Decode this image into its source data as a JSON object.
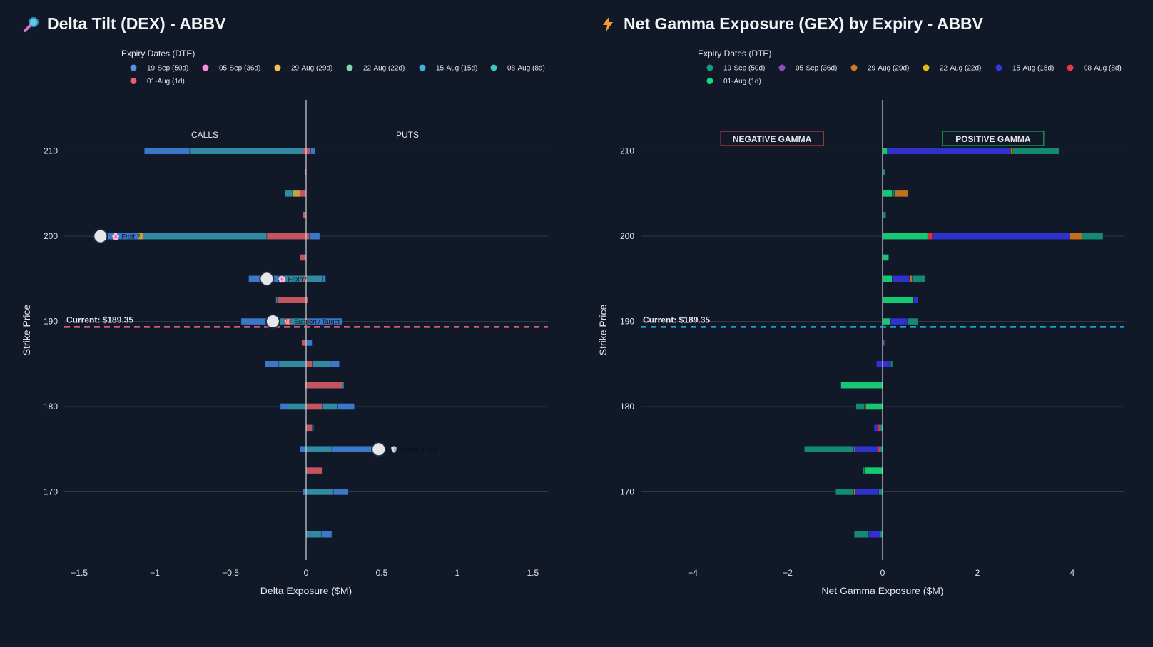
{
  "chart_data": [
    {
      "type": "bar",
      "orientation": "horizontal",
      "stacked": true,
      "title": "Delta Tilt (DEX) - ABBV",
      "title_icon": "magnifier-icon",
      "xlabel": "Delta Exposure ($M)",
      "ylabel": "Strike Price",
      "xlim": [
        -1.6,
        1.6
      ],
      "ylim": [
        162,
        216
      ],
      "xticks": [
        -1.5,
        -1,
        -0.5,
        0,
        0.5,
        1,
        1.5
      ],
      "xtick_labels": [
        "−1.5",
        "−1",
        "−0.5",
        "0",
        "0.5",
        "1",
        "1.5"
      ],
      "yticks": [
        170,
        180,
        190,
        200,
        210
      ],
      "legend_title": "Expiry Dates (DTE)",
      "series": [
        {
          "name": "19-Sep (50d)",
          "color": "#4f94e6"
        },
        {
          "name": "05-Sep (36d)",
          "color": "#f98fd8"
        },
        {
          "name": "29-Aug (29d)",
          "color": "#f5c44f"
        },
        {
          "name": "22-Aug (22d)",
          "color": "#7fd3b4"
        },
        {
          "name": "15-Aug (15d)",
          "color": "#3fb6d6"
        },
        {
          "name": "08-Aug (8d)",
          "color": "#3ec9be"
        },
        {
          "name": "01-Aug (1d)",
          "color": "#f15b6c"
        }
      ],
      "bar_colors": {
        "19-Sep": "#3c78c8",
        "05-Sep": "#d27fbf",
        "29-Aug": "#c9a040",
        "22-Aug": "#6fb59c",
        "15-Aug": "#2f8aa2",
        "08-Aug": "#2f9a92",
        "01-Aug": "#c2555f"
      },
      "bars": [
        {
          "strike": 210,
          "segments": [
            {
              "series": "01-Aug",
              "value": -0.02
            },
            {
              "series": "15-Aug",
              "value": -0.75
            },
            {
              "series": "19-Sep",
              "value": -0.3
            },
            {
              "series": "01-Aug",
              "value": 0.03
            },
            {
              "series": "19-Sep",
              "value": 0.03
            }
          ]
        },
        {
          "strike": 207.5,
          "segments": [
            {
              "series": "01-Aug",
              "value": -0.01
            }
          ]
        },
        {
          "strike": 205,
          "segments": [
            {
              "series": "01-Aug",
              "value": -0.04
            },
            {
              "series": "29-Aug",
              "value": -0.05
            },
            {
              "series": "15-Aug",
              "value": -0.05
            }
          ]
        },
        {
          "strike": 202.5,
          "segments": [
            {
              "series": "01-Aug",
              "value": -0.02
            }
          ]
        },
        {
          "strike": 200,
          "segments": [
            {
              "series": "01-Aug",
              "value": -0.26
            },
            {
              "series": "15-Aug",
              "value": -0.82
            },
            {
              "series": "29-Aug",
              "value": -0.03
            },
            {
              "series": "19-Sep",
              "value": -0.25
            },
            {
              "series": "01-Aug",
              "value": 0.02
            },
            {
              "series": "19-Sep",
              "value": 0.07
            }
          ]
        },
        {
          "strike": 197.5,
          "segments": [
            {
              "series": "01-Aug",
              "value": -0.04
            }
          ]
        },
        {
          "strike": 195,
          "segments": [
            {
              "series": "01-Aug",
              "value": -0.02
            },
            {
              "series": "15-Aug",
              "value": -0.16
            },
            {
              "series": "19-Sep",
              "value": -0.2
            },
            {
              "series": "15-Aug",
              "value": 0.11
            },
            {
              "series": "19-Sep",
              "value": 0.02
            }
          ]
        },
        {
          "strike": 192.5,
          "segments": [
            {
              "series": "01-Aug",
              "value": -0.19
            },
            {
              "series": "15-Aug",
              "value": -0.01
            },
            {
              "series": "01-Aug",
              "value": 0.01
            }
          ]
        },
        {
          "strike": 190,
          "segments": [
            {
              "series": "15-Aug",
              "value": -0.18
            },
            {
              "series": "19-Sep",
              "value": -0.25
            },
            {
              "series": "01-Aug",
              "value": 0.01
            },
            {
              "series": "19-Sep",
              "value": 0.23
            }
          ]
        },
        {
          "strike": 187.5,
          "segments": [
            {
              "series": "01-Aug",
              "value": -0.03
            },
            {
              "series": "19-Sep",
              "value": 0.04
            }
          ]
        },
        {
          "strike": 185,
          "segments": [
            {
              "series": "15-Aug",
              "value": -0.18
            },
            {
              "series": "19-Sep",
              "value": -0.09
            },
            {
              "series": "01-Aug",
              "value": 0.04
            },
            {
              "series": "15-Aug",
              "value": 0.12
            },
            {
              "series": "19-Sep",
              "value": 0.06
            }
          ]
        },
        {
          "strike": 182.5,
          "segments": [
            {
              "series": "01-Aug",
              "value": -0.01
            },
            {
              "series": "01-Aug",
              "value": 0.24
            },
            {
              "series": "15-Aug",
              "value": 0.01
            }
          ]
        },
        {
          "strike": 180,
          "segments": [
            {
              "series": "15-Aug",
              "value": -0.12
            },
            {
              "series": "19-Sep",
              "value": -0.05
            },
            {
              "series": "01-Aug",
              "value": 0.11
            },
            {
              "series": "15-Aug",
              "value": 0.1
            },
            {
              "series": "19-Sep",
              "value": 0.11
            }
          ]
        },
        {
          "strike": 177.5,
          "segments": [
            {
              "series": "01-Aug",
              "value": 0.04
            },
            {
              "series": "15-Aug",
              "value": 0.01
            }
          ]
        },
        {
          "strike": 175,
          "segments": [
            {
              "series": "19-Sep",
              "value": -0.04
            },
            {
              "series": "15-Aug",
              "value": 0.17
            },
            {
              "series": "19-Sep",
              "value": 0.3
            },
            {
              "series": "19-Sep",
              "value": 0.02
            }
          ]
        },
        {
          "strike": 172.5,
          "segments": [
            {
              "series": "01-Aug",
              "value": 0.11
            }
          ]
        },
        {
          "strike": 170,
          "segments": [
            {
              "series": "19-Sep",
              "value": -0.02
            },
            {
              "series": "15-Aug",
              "value": 0.18
            },
            {
              "series": "19-Sep",
              "value": 0.1
            }
          ]
        },
        {
          "strike": 165,
          "segments": [
            {
              "series": "15-Aug",
              "value": 0.1
            },
            {
              "series": "19-Sep",
              "value": 0.07
            }
          ]
        }
      ],
      "quadrant_labels": {
        "left": "CALLS",
        "right": "PUTS"
      },
      "current_price": {
        "value": 189.35,
        "label": "Current: $189.35",
        "color": "#e9687f"
      },
      "annotations": [
        {
          "x": -1.36,
          "y": 200,
          "marker_label": "🌸 Froth?",
          "icon": "flower-icon"
        },
        {
          "x": -0.26,
          "y": 195,
          "marker_label": "🌸 Froth?",
          "icon": "flower-icon"
        },
        {
          "x": -0.22,
          "y": 190,
          "marker_label": "🎯 Support / Target",
          "icon": "target-icon"
        },
        {
          "x": 0.48,
          "y": 175,
          "marker_label": "🛡️ Defend Price",
          "icon": "shield-icon"
        }
      ]
    },
    {
      "type": "bar",
      "orientation": "horizontal",
      "stacked": true,
      "title": "Net Gamma Exposure (GEX) by Expiry - ABBV",
      "title_icon": "lightning-icon",
      "xlabel": "Net Gamma Exposure ($M)",
      "ylabel": "Strike Price",
      "xlim": [
        -5.1,
        5.1
      ],
      "ylim": [
        162,
        216
      ],
      "xticks": [
        -4,
        -2,
        0,
        2,
        4
      ],
      "xtick_labels": [
        "−4",
        "−2",
        "0",
        "2",
        "4"
      ],
      "yticks": [
        170,
        180,
        190,
        200,
        210
      ],
      "legend_title": "Expiry Dates (DTE)",
      "series": [
        {
          "name": "19-Sep (50d)",
          "color": "#159a80"
        },
        {
          "name": "05-Sep (36d)",
          "color": "#8d4fc2"
        },
        {
          "name": "29-Aug (29d)",
          "color": "#d47a22"
        },
        {
          "name": "22-Aug (22d)",
          "color": "#e5bb14"
        },
        {
          "name": "15-Aug (15d)",
          "color": "#3437de"
        },
        {
          "name": "08-Aug (8d)",
          "color": "#ea3a4a"
        },
        {
          "name": "01-Aug (1d)",
          "color": "#17d97a"
        }
      ],
      "bar_colors": {
        "19-Sep": "#148a73",
        "05-Sep": "#7f47b0",
        "29-Aug": "#c27020",
        "22-Aug": "#d4ab12",
        "15-Aug": "#2f32cc",
        "08-Aug": "#d4353f",
        "01-Aug": "#16c873"
      },
      "bars": [
        {
          "strike": 210,
          "segments": [
            {
              "series": "01-Aug",
              "value": 0.1
            },
            {
              "series": "15-Aug",
              "value": 2.6
            },
            {
              "series": "29-Aug",
              "value": 0.05
            },
            {
              "series": "19-Sep",
              "value": 0.97
            }
          ]
        },
        {
          "strike": 207.5,
          "segments": [
            {
              "series": "19-Sep",
              "value": 0.05
            }
          ]
        },
        {
          "strike": 205,
          "segments": [
            {
              "series": "01-Aug",
              "value": 0.2
            },
            {
              "series": "19-Sep",
              "value": 0.05
            },
            {
              "series": "29-Aug",
              "value": 0.28
            }
          ]
        },
        {
          "strike": 202.5,
          "segments": [
            {
              "series": "19-Sep",
              "value": 0.07
            }
          ]
        },
        {
          "strike": 200,
          "segments": [
            {
              "series": "01-Aug",
              "value": 0.95
            },
            {
              "series": "08-Aug",
              "value": 0.1
            },
            {
              "series": "15-Aug",
              "value": 2.9
            },
            {
              "series": "29-Aug",
              "value": 0.25
            },
            {
              "series": "19-Sep",
              "value": 0.45
            }
          ]
        },
        {
          "strike": 197.5,
          "segments": [
            {
              "series": "01-Aug",
              "value": 0.13
            }
          ]
        },
        {
          "strike": 195,
          "segments": [
            {
              "series": "01-Aug",
              "value": 0.2
            },
            {
              "series": "15-Aug",
              "value": 0.37
            },
            {
              "series": "29-Aug",
              "value": 0.05
            },
            {
              "series": "19-Sep",
              "value": 0.27
            }
          ]
        },
        {
          "strike": 192.5,
          "segments": [
            {
              "series": "01-Aug",
              "value": 0.65
            },
            {
              "series": "15-Aug",
              "value": 0.1
            }
          ]
        },
        {
          "strike": 190,
          "segments": [
            {
              "series": "01-Aug",
              "value": 0.17
            },
            {
              "series": "15-Aug",
              "value": 0.35
            },
            {
              "series": "19-Sep",
              "value": 0.22
            }
          ]
        },
        {
          "strike": 187.5,
          "segments": [
            {
              "series": "05-Sep",
              "value": 0.04
            }
          ]
        },
        {
          "strike": 185,
          "segments": [
            {
              "series": "15-Aug",
              "value": -0.13
            },
            {
              "series": "15-Aug",
              "value": 0.17
            },
            {
              "series": "19-Sep",
              "value": 0.04
            }
          ]
        },
        {
          "strike": 182.5,
          "segments": [
            {
              "series": "01-Aug",
              "value": -0.88
            },
            {
              "series": "15-Aug",
              "value": -0.02
            }
          ]
        },
        {
          "strike": 180,
          "segments": [
            {
              "series": "01-Aug",
              "value": -0.35
            },
            {
              "series": "29-Aug",
              "value": -0.03
            },
            {
              "series": "19-Sep",
              "value": -0.18
            }
          ]
        },
        {
          "strike": 177.5,
          "segments": [
            {
              "series": "19-Sep",
              "value": -0.05
            },
            {
              "series": "08-Aug",
              "value": -0.05
            },
            {
              "series": "15-Aug",
              "value": -0.08
            }
          ]
        },
        {
          "strike": 175,
          "segments": [
            {
              "series": "19-Sep",
              "value": -0.05
            },
            {
              "series": "08-Aug",
              "value": -0.05
            },
            {
              "series": "15-Aug",
              "value": -0.46
            },
            {
              "series": "05-Sep",
              "value": -0.05
            },
            {
              "series": "19-Sep",
              "value": -1.04
            }
          ]
        },
        {
          "strike": 172.5,
          "segments": [
            {
              "series": "01-Aug",
              "value": -0.38
            },
            {
              "series": "19-Sep",
              "value": -0.03
            }
          ]
        },
        {
          "strike": 170,
          "segments": [
            {
              "series": "19-Sep",
              "value": -0.08
            },
            {
              "series": "15-Aug",
              "value": -0.5
            },
            {
              "series": "29-Aug",
              "value": -0.03
            },
            {
              "series": "19-Sep",
              "value": -0.38
            }
          ]
        },
        {
          "strike": 165,
          "segments": [
            {
              "series": "19-Sep",
              "value": -0.05
            },
            {
              "series": "15-Aug",
              "value": -0.25
            },
            {
              "series": "19-Sep",
              "value": -0.3
            }
          ]
        }
      ],
      "quadrant_labels": {
        "left": "NEGATIVE GAMMA",
        "right": "POSITIVE GAMMA",
        "left_color": "#ef4444",
        "right_color": "#22c55e"
      },
      "current_price": {
        "value": 189.35,
        "label": "Current: $189.35",
        "color": "#19b4e0"
      }
    }
  ]
}
